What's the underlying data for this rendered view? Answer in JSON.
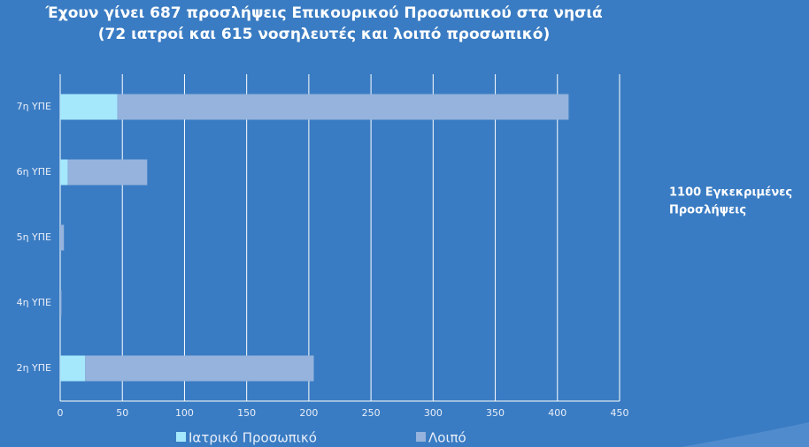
{
  "chart_data": {
    "type": "stacked-bar-horizontal",
    "title": [
      "Έχουν γίνει 687 προσλήψεις Επικουρικού Προσωπικού στα νησιά",
      "(72 ιατροί και 615 νοσηλευτές και λοιπό προσωπικό)"
    ],
    "annotation": [
      "1100 Εγκεκριμένες",
      "Προσλήψεις"
    ],
    "categories": [
      "7η ΥΠΕ",
      "6η ΥΠΕ",
      "5η ΥΠΕ",
      "4η ΥΠΕ",
      "2η ΥΠΕ"
    ],
    "series": [
      {
        "name": "Ιατρικό Προσωπικό",
        "color": "#a6e8fb",
        "values": [
          46,
          6,
          0,
          0,
          20
        ]
      },
      {
        "name": "Λοιπό",
        "color": "#95b3dc",
        "values": [
          363,
          64,
          3,
          1,
          184
        ]
      }
    ],
    "xlim": [
      0,
      450
    ],
    "xticks": [
      0,
      50,
      100,
      150,
      200,
      250,
      300,
      350,
      400,
      450
    ],
    "grid": true
  }
}
